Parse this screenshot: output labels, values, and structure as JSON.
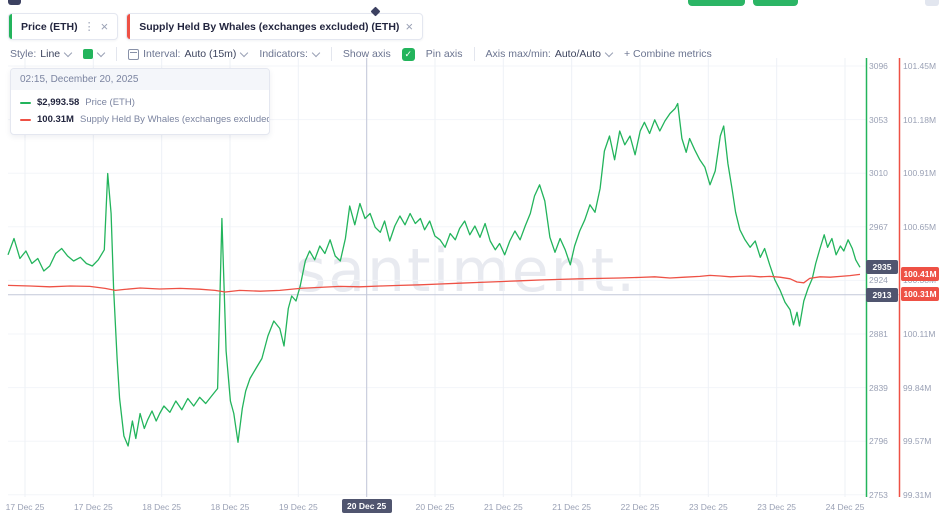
{
  "app": {
    "watermark": "santiment."
  },
  "colors": {
    "green": "#23b45c",
    "red": "#ee5145",
    "dark_badge": "#50556f",
    "axis_text": "#9aa1b5",
    "grid": "#f3f5f9",
    "grid_v": "#eef1f6",
    "crosshair": "#c3c8d9"
  },
  "tabs": [
    {
      "label": "Price (ETH)",
      "accent": "#23b45c",
      "menu_icon": "⋮",
      "close": "×"
    },
    {
      "label": "Supply Held By Whales (exchanges excluded) (ETH)",
      "accent": "#ee5145",
      "close": "×"
    }
  ],
  "toolbar": {
    "style_label": "Style:",
    "style_value": "Line",
    "interval_label": "Interval:",
    "interval_value": "Auto (15m)",
    "indicators_label": "Indicators:",
    "show_axis_label": "Show axis",
    "pin_axis_label": "Pin axis",
    "axis_maxmin_label": "Axis max/min:",
    "axis_maxmin_value": "Auto/Auto",
    "combine_metrics_label": "+ Combine metrics"
  },
  "tooltip": {
    "timestamp": "02:15, December 20, 2025",
    "rows": [
      {
        "value": "$2,993.58",
        "label": "Price (ETH)",
        "color": "#23b45c"
      },
      {
        "value": "100.31M",
        "label": "Supply Held By Whales (exchanges excluded) (ETH)",
        "color": "#ee5145"
      }
    ]
  },
  "chart_data": {
    "type": "line",
    "title": "",
    "xlabel": "",
    "ylabel": "",
    "legend_position": "tooltip-top-left",
    "grid": true,
    "axes": {
      "price": {
        "min": 2753,
        "max": 3096,
        "color": "#23b45c",
        "ticks": [
          "3096",
          "3053",
          "3010",
          "2967",
          "2924",
          "2881",
          "2839",
          "2796",
          "2753"
        ]
      },
      "supply": {
        "min": 99.31,
        "max": 101.45,
        "color": "#ee5145",
        "ticks": [
          "101.45M",
          "101.18M",
          "100.91M",
          "100.65M",
          "100.38M",
          "100.11M",
          "99.84M",
          "99.57M",
          "99.31M"
        ]
      }
    },
    "x_ticks": [
      {
        "label": "17 Dec 25"
      },
      {
        "label": "17 Dec 25"
      },
      {
        "label": "18 Dec 25"
      },
      {
        "label": "18 Dec 25"
      },
      {
        "label": "19 Dec 25"
      },
      {
        "label": "20 Dec 25",
        "highlighted": true
      },
      {
        "label": "20 Dec 25"
      },
      {
        "label": "21 Dec 25"
      },
      {
        "label": "21 Dec 25"
      },
      {
        "label": "22 Dec 25"
      },
      {
        "label": "23 Dec 25"
      },
      {
        "label": "23 Dec 25"
      },
      {
        "label": "24 Dec 25"
      }
    ],
    "crosshair": {
      "x_frac": 0.421,
      "price_value": 2913
    },
    "badges": [
      {
        "text": "2935",
        "value": 2935,
        "axis": "price",
        "style": "dark"
      },
      {
        "text": "100.41M",
        "value": 100.41,
        "axis": "supply",
        "style": "red"
      },
      {
        "text": "2913",
        "value": 2913,
        "axis": "price",
        "style": "dark"
      },
      {
        "text": "100.31M",
        "value": 100.31,
        "axis": "supply",
        "style": "red"
      }
    ],
    "series": [
      {
        "name": "Price (ETH)",
        "color": "#23b45c",
        "axis": "price",
        "points": [
          [
            0,
            2945
          ],
          [
            0.007,
            2958
          ],
          [
            0.014,
            2942
          ],
          [
            0.021,
            2948
          ],
          [
            0.028,
            2938
          ],
          [
            0.035,
            2942
          ],
          [
            0.042,
            2932
          ],
          [
            0.049,
            2936
          ],
          [
            0.056,
            2946
          ],
          [
            0.063,
            2950
          ],
          [
            0.07,
            2944
          ],
          [
            0.077,
            2940
          ],
          [
            0.085,
            2943
          ],
          [
            0.092,
            2938
          ],
          [
            0.099,
            2936
          ],
          [
            0.106,
            2941
          ],
          [
            0.113,
            2949
          ],
          [
            0.117,
            3010
          ],
          [
            0.121,
            2978
          ],
          [
            0.124,
            2918
          ],
          [
            0.128,
            2862
          ],
          [
            0.131,
            2830
          ],
          [
            0.136,
            2800
          ],
          [
            0.141,
            2792
          ],
          [
            0.146,
            2812
          ],
          [
            0.15,
            2798
          ],
          [
            0.155,
            2818
          ],
          [
            0.16,
            2806
          ],
          [
            0.164,
            2813
          ],
          [
            0.169,
            2820
          ],
          [
            0.174,
            2812
          ],
          [
            0.178,
            2818
          ],
          [
            0.183,
            2824
          ],
          [
            0.19,
            2819
          ],
          [
            0.197,
            2828
          ],
          [
            0.204,
            2821
          ],
          [
            0.211,
            2830
          ],
          [
            0.218,
            2824
          ],
          [
            0.225,
            2831
          ],
          [
            0.232,
            2826
          ],
          [
            0.239,
            2832
          ],
          [
            0.246,
            2838
          ],
          [
            0.251,
            2974
          ],
          [
            0.256,
            2868
          ],
          [
            0.261,
            2828
          ],
          [
            0.265,
            2818
          ],
          [
            0.27,
            2795
          ],
          [
            0.275,
            2822
          ],
          [
            0.279,
            2836
          ],
          [
            0.284,
            2846
          ],
          [
            0.291,
            2854
          ],
          [
            0.298,
            2862
          ],
          [
            0.305,
            2880
          ],
          [
            0.312,
            2892
          ],
          [
            0.319,
            2886
          ],
          [
            0.324,
            2872
          ],
          [
            0.329,
            2902
          ],
          [
            0.333,
            2912
          ],
          [
            0.338,
            2908
          ],
          [
            0.343,
            2920
          ],
          [
            0.349,
            2940
          ],
          [
            0.354,
            2948
          ],
          [
            0.36,
            2941
          ],
          [
            0.366,
            2952
          ],
          [
            0.372,
            2946
          ],
          [
            0.378,
            2957
          ],
          [
            0.384,
            2944
          ],
          [
            0.39,
            2940
          ],
          [
            0.396,
            2958
          ],
          [
            0.401,
            2984
          ],
          [
            0.407,
            2969
          ],
          [
            0.413,
            2986
          ],
          [
            0.419,
            2974
          ],
          [
            0.425,
            2978
          ],
          [
            0.431,
            2967
          ],
          [
            0.437,
            2963
          ],
          [
            0.442,
            2972
          ],
          [
            0.448,
            2956
          ],
          [
            0.454,
            2968
          ],
          [
            0.46,
            2976
          ],
          [
            0.466,
            2969
          ],
          [
            0.472,
            2978
          ],
          [
            0.478,
            2970
          ],
          [
            0.484,
            2974
          ],
          [
            0.489,
            2965
          ],
          [
            0.495,
            2972
          ],
          [
            0.501,
            2960
          ],
          [
            0.507,
            2957
          ],
          [
            0.513,
            2951
          ],
          [
            0.519,
            2962
          ],
          [
            0.525,
            2957
          ],
          [
            0.53,
            2966
          ],
          [
            0.536,
            2972
          ],
          [
            0.542,
            2961
          ],
          [
            0.548,
            2968
          ],
          [
            0.554,
            2959
          ],
          [
            0.56,
            2970
          ],
          [
            0.566,
            2956
          ],
          [
            0.572,
            2949
          ],
          [
            0.577,
            2954
          ],
          [
            0.583,
            2945
          ],
          [
            0.589,
            2956
          ],
          [
            0.595,
            2964
          ],
          [
            0.601,
            2957
          ],
          [
            0.607,
            2968
          ],
          [
            0.613,
            2978
          ],
          [
            0.618,
            2992
          ],
          [
            0.624,
            3001
          ],
          [
            0.63,
            2988
          ],
          [
            0.636,
            2959
          ],
          [
            0.642,
            2947
          ],
          [
            0.648,
            2958
          ],
          [
            0.654,
            2949
          ],
          [
            0.66,
            2937
          ],
          [
            0.665,
            2952
          ],
          [
            0.671,
            2964
          ],
          [
            0.677,
            2973
          ],
          [
            0.683,
            2985
          ],
          [
            0.689,
            2979
          ],
          [
            0.695,
            2998
          ],
          [
            0.7,
            3028
          ],
          [
            0.706,
            3040
          ],
          [
            0.712,
            3021
          ],
          [
            0.718,
            3044
          ],
          [
            0.724,
            3033
          ],
          [
            0.73,
            3040
          ],
          [
            0.736,
            3025
          ],
          [
            0.742,
            3044
          ],
          [
            0.747,
            3051
          ],
          [
            0.753,
            3042
          ],
          [
            0.759,
            3053
          ],
          [
            0.765,
            3044
          ],
          [
            0.771,
            3052
          ],
          [
            0.777,
            3058
          ],
          [
            0.783,
            3062
          ],
          [
            0.786,
            3066
          ],
          [
            0.791,
            3038
          ],
          [
            0.796,
            3027
          ],
          [
            0.8,
            3038
          ],
          [
            0.806,
            3029
          ],
          [
            0.812,
            3021
          ],
          [
            0.818,
            3015
          ],
          [
            0.824,
            3001
          ],
          [
            0.83,
            3012
          ],
          [
            0.836,
            3040
          ],
          [
            0.84,
            3048
          ],
          [
            0.845,
            3018
          ],
          [
            0.85,
            2997
          ],
          [
            0.854,
            2979
          ],
          [
            0.859,
            2965
          ],
          [
            0.865,
            2957
          ],
          [
            0.871,
            2951
          ],
          [
            0.877,
            2956
          ],
          [
            0.883,
            2943
          ],
          [
            0.888,
            2950
          ],
          [
            0.894,
            2937
          ],
          [
            0.9,
            2925
          ],
          [
            0.906,
            2917
          ],
          [
            0.912,
            2907
          ],
          [
            0.918,
            2901
          ],
          [
            0.922,
            2889
          ],
          [
            0.926,
            2899
          ],
          [
            0.929,
            2888
          ],
          [
            0.934,
            2908
          ],
          [
            0.939,
            2918
          ],
          [
            0.944,
            2926
          ],
          [
            0.948,
            2938
          ],
          [
            0.953,
            2950
          ],
          [
            0.958,
            2961
          ],
          [
            0.962,
            2951
          ],
          [
            0.967,
            2958
          ],
          [
            0.972,
            2945
          ],
          [
            0.977,
            2952
          ],
          [
            0.981,
            2948
          ],
          [
            0.986,
            2957
          ],
          [
            0.991,
            2950
          ],
          [
            0.995,
            2941
          ],
          [
            1,
            2935
          ]
        ]
      },
      {
        "name": "Supply Held By Whales (exchanges excluded) (ETH)",
        "color": "#ee5145",
        "axis": "supply",
        "points": [
          [
            0,
            100.355
          ],
          [
            0.026,
            100.352
          ],
          [
            0.049,
            100.348
          ],
          [
            0.073,
            100.352
          ],
          [
            0.096,
            100.35
          ],
          [
            0.114,
            100.34
          ],
          [
            0.126,
            100.33
          ],
          [
            0.137,
            100.335
          ],
          [
            0.155,
            100.342
          ],
          [
            0.178,
            100.337
          ],
          [
            0.202,
            100.34
          ],
          [
            0.225,
            100.336
          ],
          [
            0.243,
            100.33
          ],
          [
            0.255,
            100.322
          ],
          [
            0.272,
            100.33
          ],
          [
            0.296,
            100.326
          ],
          [
            0.319,
            100.33
          ],
          [
            0.343,
            100.34
          ],
          [
            0.366,
            100.345
          ],
          [
            0.39,
            100.35
          ],
          [
            0.413,
            100.348
          ],
          [
            0.437,
            100.352
          ],
          [
            0.46,
            100.355
          ],
          [
            0.484,
            100.358
          ],
          [
            0.507,
            100.362
          ],
          [
            0.53,
            100.366
          ],
          [
            0.554,
            100.37
          ],
          [
            0.577,
            100.374
          ],
          [
            0.601,
            100.378
          ],
          [
            0.624,
            100.382
          ],
          [
            0.648,
            100.385
          ],
          [
            0.671,
            100.388
          ],
          [
            0.695,
            100.39
          ],
          [
            0.718,
            100.392
          ],
          [
            0.742,
            100.395
          ],
          [
            0.759,
            100.398
          ],
          [
            0.777,
            100.392
          ],
          [
            0.794,
            100.396
          ],
          [
            0.812,
            100.4
          ],
          [
            0.824,
            100.405
          ],
          [
            0.836,
            100.402
          ],
          [
            0.848,
            100.398
          ],
          [
            0.859,
            100.4
          ],
          [
            0.871,
            100.402
          ],
          [
            0.883,
            100.398
          ],
          [
            0.894,
            100.4
          ],
          [
            0.906,
            100.396
          ],
          [
            0.918,
            100.388
          ],
          [
            0.926,
            100.372
          ],
          [
            0.934,
            100.368
          ],
          [
            0.941,
            100.39
          ],
          [
            0.953,
            100.398
          ],
          [
            0.965,
            100.396
          ],
          [
            0.977,
            100.4
          ],
          [
            0.988,
            100.404
          ],
          [
            1,
            100.41
          ]
        ]
      }
    ]
  }
}
